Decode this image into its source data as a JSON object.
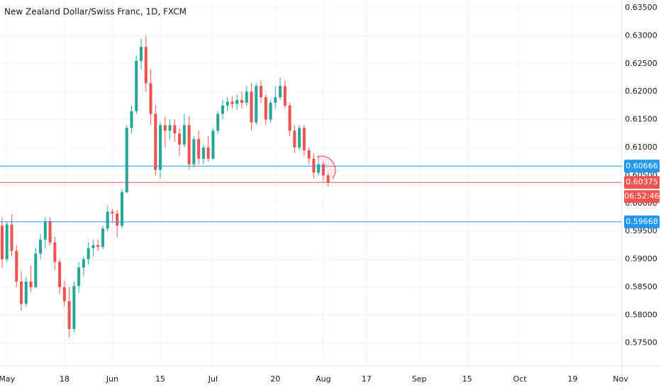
{
  "chart_data": {
    "type": "candlestick",
    "title": "New Zealand Dollar/Swiss Franc, 1D, FXCM",
    "up_color": "#26a69a",
    "down_color": "#ef5350",
    "open": [
      0.596,
      0.59,
      0.5962,
      0.5915,
      0.586,
      0.582,
      0.586,
      0.585,
      0.591,
      0.5935,
      0.5968,
      0.593,
      0.5895,
      0.585,
      0.5825,
      0.5775,
      0.5852,
      0.5885,
      0.59,
      0.592,
      0.5925,
      0.5922,
      0.5955,
      0.5985,
      0.5982,
      0.596,
      0.602,
      0.6135,
      0.6165,
      0.6255,
      0.628,
      0.6215,
      0.616,
      0.606,
      0.614,
      0.613,
      0.614,
      0.6125,
      0.6105,
      0.614,
      0.607,
      0.6115,
      0.608,
      0.61,
      0.608,
      0.613,
      0.616,
      0.6175,
      0.6182,
      0.6178,
      0.6185,
      0.618,
      0.62,
      0.6145,
      0.621,
      0.619,
      0.615,
      0.618,
      0.619,
      0.621,
      0.6175,
      0.613,
      0.61,
      0.6135,
      0.6095,
      0.608,
      0.6055,
      0.607,
      0.605
    ],
    "high": [
      0.5975,
      0.5968,
      0.598,
      0.5925,
      0.5878,
      0.5868,
      0.5888,
      0.592,
      0.5945,
      0.5975,
      0.5975,
      0.594,
      0.59,
      0.5862,
      0.585,
      0.586,
      0.5895,
      0.5905,
      0.593,
      0.5935,
      0.5935,
      0.596,
      0.5995,
      0.599,
      0.5988,
      0.6025,
      0.614,
      0.6175,
      0.6265,
      0.6295,
      0.63,
      0.624,
      0.6175,
      0.6145,
      0.6155,
      0.615,
      0.615,
      0.6135,
      0.616,
      0.6155,
      0.612,
      0.613,
      0.6105,
      0.612,
      0.6135,
      0.6165,
      0.6185,
      0.619,
      0.6192,
      0.6195,
      0.62,
      0.621,
      0.6215,
      0.6215,
      0.622,
      0.6195,
      0.6185,
      0.621,
      0.6225,
      0.622,
      0.618,
      0.614,
      0.614,
      0.614,
      0.61,
      0.609,
      0.6085,
      0.6075,
      0.6055
    ],
    "low": [
      0.5885,
      0.5895,
      0.5905,
      0.585,
      0.5808,
      0.5815,
      0.5842,
      0.5848,
      0.59,
      0.592,
      0.5925,
      0.588,
      0.5838,
      0.5815,
      0.576,
      0.5768,
      0.584,
      0.587,
      0.589,
      0.5905,
      0.5915,
      0.5918,
      0.595,
      0.5965,
      0.594,
      0.5955,
      0.6018,
      0.6125,
      0.616,
      0.624,
      0.62,
      0.614,
      0.605,
      0.6045,
      0.61,
      0.6115,
      0.611,
      0.6085,
      0.61,
      0.606,
      0.6065,
      0.607,
      0.607,
      0.6075,
      0.6078,
      0.6125,
      0.615,
      0.6165,
      0.617,
      0.6168,
      0.617,
      0.6175,
      0.613,
      0.614,
      0.618,
      0.614,
      0.6145,
      0.617,
      0.6185,
      0.617,
      0.612,
      0.609,
      0.6095,
      0.6085,
      0.607,
      0.6045,
      0.605,
      0.604,
      0.603
    ],
    "close": [
      0.59,
      0.5962,
      0.5915,
      0.586,
      0.582,
      0.586,
      0.585,
      0.591,
      0.5935,
      0.5968,
      0.593,
      0.5895,
      0.585,
      0.5825,
      0.5775,
      0.5852,
      0.5885,
      0.59,
      0.592,
      0.5925,
      0.5922,
      0.5955,
      0.5985,
      0.5982,
      0.596,
      0.602,
      0.6135,
      0.6165,
      0.6255,
      0.628,
      0.6215,
      0.616,
      0.606,
      0.614,
      0.613,
      0.614,
      0.6125,
      0.6105,
      0.614,
      0.607,
      0.6115,
      0.608,
      0.61,
      0.608,
      0.613,
      0.616,
      0.6175,
      0.6182,
      0.6178,
      0.6185,
      0.618,
      0.62,
      0.6145,
      0.621,
      0.619,
      0.615,
      0.618,
      0.619,
      0.621,
      0.6175,
      0.613,
      0.61,
      0.6135,
      0.6095,
      0.608,
      0.6055,
      0.607,
      0.605,
      0.60375
    ],
    "xlim": [
      -0.44,
      129.3
    ],
    "xticks": [
      {
        "value": 1,
        "label": "May"
      },
      {
        "value": 13,
        "label": "18"
      },
      {
        "value": 23,
        "label": "Jun"
      },
      {
        "value": 33,
        "label": "15"
      },
      {
        "value": 44,
        "label": "Jul"
      },
      {
        "value": 57,
        "label": "20"
      },
      {
        "value": 67,
        "label": "Aug"
      },
      {
        "value": 76,
        "label": "17"
      },
      {
        "value": 87,
        "label": "Sep"
      },
      {
        "value": 97,
        "label": "15"
      },
      {
        "value": 108,
        "label": "Oct"
      },
      {
        "value": 119,
        "label": "19"
      },
      {
        "value": 129,
        "label": "Nov"
      }
    ],
    "ylim": [
      0.5709,
      0.6364
    ],
    "yticks": [
      {
        "value": 0.635,
        "label": "0.63500"
      },
      {
        "value": 0.63,
        "label": "0.63000"
      },
      {
        "value": 0.625,
        "label": "0.62500"
      },
      {
        "value": 0.62,
        "label": "0.62000"
      },
      {
        "value": 0.615,
        "label": "0.61500"
      },
      {
        "value": 0.61,
        "label": "0.61000"
      },
      {
        "value": 0.605,
        "label": "0.60500"
      },
      {
        "value": 0.6,
        "label": "0.60000"
      },
      {
        "value": 0.595,
        "label": "0.59500"
      },
      {
        "value": 0.59,
        "label": "0.59000"
      },
      {
        "value": 0.585,
        "label": "0.58500"
      },
      {
        "value": 0.58,
        "label": "0.58000"
      },
      {
        "value": 0.575,
        "label": "0.57500"
      }
    ],
    "grid": true,
    "levels": [
      {
        "value": 0.60666,
        "color": "#2196f3"
      },
      {
        "value": 0.60375,
        "color": "#ef5350"
      },
      {
        "value": 0.59668,
        "color": "#2196f3"
      }
    ],
    "countdown": "06:52:46"
  }
}
